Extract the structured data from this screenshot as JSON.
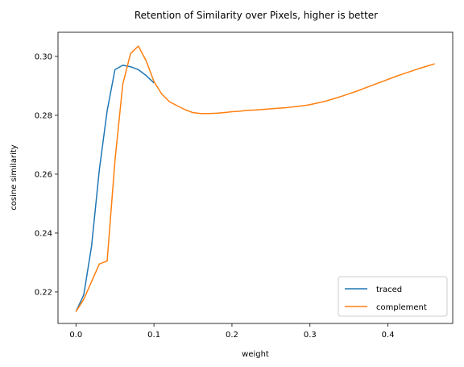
{
  "chart_data": {
    "type": "line",
    "title": "Retention of Similarity over Pixels, higher is better",
    "xlabel": "weight",
    "ylabel": "cosine similarity",
    "xlim": [
      -0.023,
      0.483
    ],
    "ylim": [
      0.2093,
      0.3082
    ],
    "xticks": [
      0.0,
      0.1,
      0.2,
      0.3,
      0.4
    ],
    "xtick_labels": [
      "0.0",
      "0.1",
      "0.2",
      "0.3",
      "0.4"
    ],
    "yticks": [
      0.22,
      0.24,
      0.26,
      0.28,
      0.3
    ],
    "ytick_labels": [
      "0.22",
      "0.24",
      "0.26",
      "0.28",
      "0.30"
    ],
    "grid": false,
    "legend_position": "lower-right",
    "series": [
      {
        "name": "traced",
        "color": "#1f77b4",
        "x": [
          0.0,
          0.01,
          0.02,
          0.03,
          0.04,
          0.05,
          0.06,
          0.07,
          0.08,
          0.09,
          0.1
        ],
        "y": [
          0.2133,
          0.219,
          0.2355,
          0.2615,
          0.2815,
          0.2955,
          0.297,
          0.2965,
          0.2955,
          0.2935,
          0.291
        ]
      },
      {
        "name": "complement",
        "color": "#ff7f0e",
        "x": [
          0.0,
          0.01,
          0.02,
          0.03,
          0.04,
          0.05,
          0.06,
          0.07,
          0.08,
          0.09,
          0.1,
          0.11,
          0.12,
          0.13,
          0.14,
          0.15,
          0.16,
          0.17,
          0.18,
          0.19,
          0.2,
          0.21,
          0.22,
          0.23,
          0.24,
          0.25,
          0.26,
          0.27,
          0.28,
          0.29,
          0.3,
          0.31,
          0.32,
          0.33,
          0.34,
          0.35,
          0.36,
          0.37,
          0.38,
          0.39,
          0.4,
          0.41,
          0.42,
          0.43,
          0.44,
          0.45,
          0.46
        ],
        "y": [
          0.2133,
          0.2175,
          0.2235,
          0.2295,
          0.2305,
          0.2645,
          0.2905,
          0.301,
          0.3035,
          0.2985,
          0.2915,
          0.2872,
          0.2846,
          0.2832,
          0.2819,
          0.2809,
          0.2806,
          0.2806,
          0.2807,
          0.2809,
          0.2812,
          0.2814,
          0.2817,
          0.2818,
          0.282,
          0.2822,
          0.2824,
          0.2826,
          0.2829,
          0.2832,
          0.2836,
          0.2842,
          0.2848,
          0.2856,
          0.2864,
          0.2873,
          0.2882,
          0.2892,
          0.2902,
          0.2912,
          0.2922,
          0.2932,
          0.2941,
          0.295,
          0.2959,
          0.2967,
          0.2975
        ]
      }
    ]
  }
}
